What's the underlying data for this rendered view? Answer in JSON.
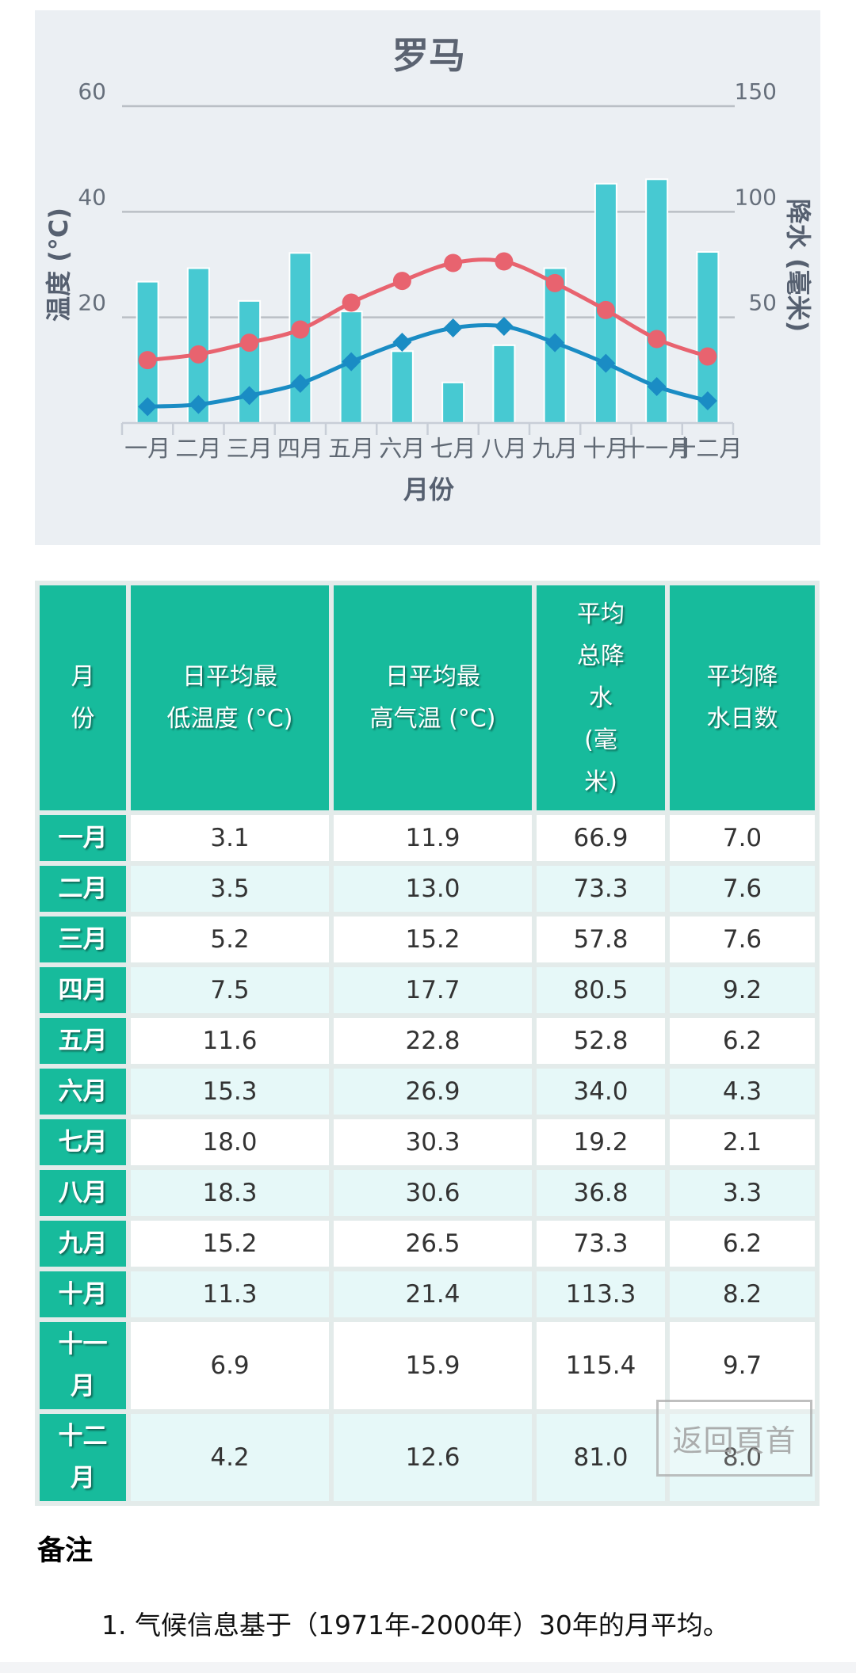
{
  "colors": {
    "chart_bg": "#ebeff3",
    "bar": "#47c9d2",
    "high_line": "#e8636f",
    "low_line": "#1a8cc4",
    "table_header": "#17bb9c",
    "table_row_alt": "#e6f8f8",
    "table_gap": "#e3ebea"
  },
  "chart_data": {
    "type": "bar",
    "title": "罗马",
    "xlabel": "月份",
    "ylabel": "温度 (°C)",
    "ylabel_right": "降水 (毫米)",
    "ylim": [
      0,
      60
    ],
    "ylim_right": [
      0,
      150
    ],
    "yticks": [
      "20",
      "40",
      "60"
    ],
    "yticks_right": [
      "50",
      "100",
      "150"
    ],
    "grid": true,
    "legend": null,
    "categories": [
      "一月",
      "二月",
      "三月",
      "四月",
      "五月",
      "六月",
      "七月",
      "八月",
      "九月",
      "十月",
      "十一月",
      "十二月"
    ],
    "series": [
      {
        "name": "平均总降水 (毫米)",
        "type": "bar",
        "axis": "right",
        "color": "#47c9d2",
        "values": [
          66.9,
          73.3,
          57.8,
          80.5,
          52.8,
          34.0,
          19.2,
          36.8,
          73.3,
          113.3,
          115.4,
          81.0
        ]
      },
      {
        "name": "日平均最高气温 (°C)",
        "type": "line",
        "axis": "left",
        "color": "#e8636f",
        "marker": "circle",
        "values": [
          11.9,
          13.0,
          15.2,
          17.7,
          22.8,
          26.9,
          30.3,
          30.6,
          26.5,
          21.4,
          15.9,
          12.6
        ]
      },
      {
        "name": "日平均最低温度 (°C)",
        "type": "line",
        "axis": "left",
        "color": "#1a8cc4",
        "marker": "diamond",
        "values": [
          3.1,
          3.5,
          5.2,
          7.5,
          11.6,
          15.3,
          18.0,
          18.3,
          15.2,
          11.3,
          6.9,
          4.2
        ]
      }
    ]
  },
  "table": {
    "headers": [
      {
        "label": "月份",
        "lines": [
          "月",
          "份"
        ]
      },
      {
        "label": "日平均最低温度 (°C)",
        "lines": [
          "日平均最",
          "低温度 (°C)"
        ]
      },
      {
        "label": "日平均最高气温 (°C)",
        "lines": [
          "日平均最",
          "高气温 (°C)"
        ]
      },
      {
        "label": "平均总降水 (毫米)",
        "lines": [
          "平均",
          "总降",
          "水",
          "(毫",
          "米)"
        ]
      },
      {
        "label": "平均降水日数",
        "lines": [
          "平均降",
          "水日数"
        ]
      }
    ],
    "rows": [
      {
        "month": "一月",
        "month_lines": [
          "一月"
        ],
        "low": "3.1",
        "high": "11.9",
        "precip": "66.9",
        "days": "7.0"
      },
      {
        "month": "二月",
        "month_lines": [
          "二月"
        ],
        "low": "3.5",
        "high": "13.0",
        "precip": "73.3",
        "days": "7.6"
      },
      {
        "month": "三月",
        "month_lines": [
          "三月"
        ],
        "low": "5.2",
        "high": "15.2",
        "precip": "57.8",
        "days": "7.6"
      },
      {
        "month": "四月",
        "month_lines": [
          "四月"
        ],
        "low": "7.5",
        "high": "17.7",
        "precip": "80.5",
        "days": "9.2"
      },
      {
        "month": "五月",
        "month_lines": [
          "五月"
        ],
        "low": "11.6",
        "high": "22.8",
        "precip": "52.8",
        "days": "6.2"
      },
      {
        "month": "六月",
        "month_lines": [
          "六月"
        ],
        "low": "15.3",
        "high": "26.9",
        "precip": "34.0",
        "days": "4.3"
      },
      {
        "month": "七月",
        "month_lines": [
          "七月"
        ],
        "low": "18.0",
        "high": "30.3",
        "precip": "19.2",
        "days": "2.1"
      },
      {
        "month": "八月",
        "month_lines": [
          "八月"
        ],
        "low": "18.3",
        "high": "30.6",
        "precip": "36.8",
        "days": "3.3"
      },
      {
        "month": "九月",
        "month_lines": [
          "九月"
        ],
        "low": "15.2",
        "high": "26.5",
        "precip": "73.3",
        "days": "6.2"
      },
      {
        "month": "十月",
        "month_lines": [
          "十月"
        ],
        "low": "11.3",
        "high": "21.4",
        "precip": "113.3",
        "days": "8.2"
      },
      {
        "month": "十一月",
        "month_lines": [
          "十一",
          "月"
        ],
        "low": "6.9",
        "high": "15.9",
        "precip": "115.4",
        "days": "9.7"
      },
      {
        "month": "十二月",
        "month_lines": [
          "十二",
          "月"
        ],
        "low": "4.2",
        "high": "12.6",
        "precip": "81.0",
        "days": "8.0"
      }
    ]
  },
  "back_to_top": {
    "label": "返回頁首"
  },
  "notes": {
    "heading": "备注",
    "items": [
      "1. 气候信息基于（1971年-2000年）30年的月平均。"
    ]
  }
}
